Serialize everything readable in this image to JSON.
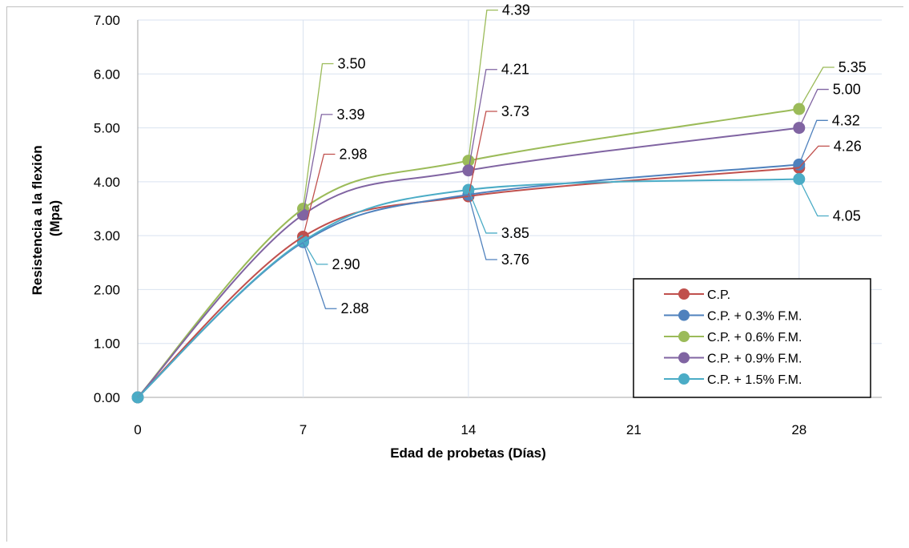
{
  "chart_data": {
    "type": "line",
    "title": "",
    "xlabel": "Edad de probetas (Días)",
    "ylabel_line1": "Resistencia a la flexión",
    "ylabel_line2": "(Mpa)",
    "x": [
      0,
      7,
      14,
      28
    ],
    "xticks": [
      "0",
      "7",
      "14",
      "21",
      "28"
    ],
    "xlim": [
      0,
      31.5
    ],
    "ylim": [
      0,
      7
    ],
    "yticks": [
      "0.00",
      "1.00",
      "2.00",
      "3.00",
      "4.00",
      "5.00",
      "6.00",
      "7.00"
    ],
    "grid": true,
    "smooth": true,
    "legend_position": "bottom-right",
    "series": [
      {
        "name": "C.P.",
        "color": "#c0504d",
        "values": [
          0,
          2.98,
          3.73,
          4.26
        ],
        "labels": [
          "",
          "2.98",
          "3.73",
          "4.26"
        ]
      },
      {
        "name": "C.P. + 0.3% F.M.",
        "color": "#4f81bd",
        "values": [
          0,
          2.88,
          3.76,
          4.32
        ],
        "labels": [
          "",
          "2.88",
          "3.76",
          "4.32"
        ]
      },
      {
        "name": "C.P. + 0.6% F.M.",
        "color": "#9bbb59",
        "values": [
          0,
          3.5,
          4.39,
          5.35
        ],
        "labels": [
          "",
          "3.50",
          "4.39",
          "5.35"
        ]
      },
      {
        "name": "C.P. + 0.9% F.M.",
        "color": "#8064a2",
        "values": [
          0,
          3.39,
          4.21,
          5.0
        ],
        "labels": [
          "",
          "3.39",
          "4.21",
          "5.00"
        ]
      },
      {
        "name": "C.P. + 1.5% F.M.",
        "color": "#4bacc6",
        "values": [
          0,
          2.9,
          3.85,
          4.05
        ],
        "labels": [
          "",
          "2.90",
          "3.85",
          "4.05"
        ]
      }
    ]
  }
}
